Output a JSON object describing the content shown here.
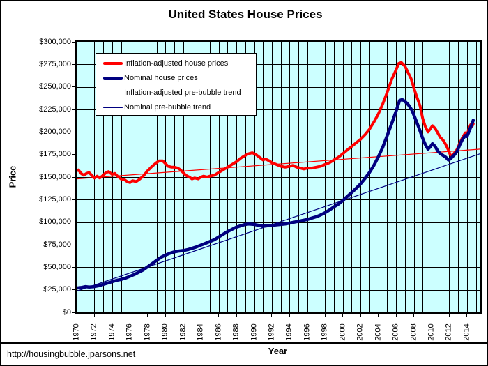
{
  "page": {
    "footer_url": "http://housingbubble.jparsons.net",
    "background": "#FFFFFF",
    "border_color": "#000000"
  },
  "chart_data": {
    "type": "line",
    "title": "United States House Prices",
    "xlabel": "Year",
    "ylabel": "Price",
    "x_domain": [
      1970,
      2015.5
    ],
    "ylim": [
      0,
      300000
    ],
    "y_unit": "USD",
    "series_value_unit": "USD thousands",
    "plot_bg": "#CCFFFF",
    "grid_color": "#000000",
    "grid": {
      "x_step_years": 1,
      "y_step": 25000,
      "visible": true
    },
    "legend_position": "top-left-inside",
    "y_ticks": [
      {
        "value": 0,
        "label": "$0"
      },
      {
        "value": 25000,
        "label": "$25,000"
      },
      {
        "value": 50000,
        "label": "$50,000"
      },
      {
        "value": 75000,
        "label": "$75,000"
      },
      {
        "value": 100000,
        "label": "$100,000"
      },
      {
        "value": 125000,
        "label": "$125,000"
      },
      {
        "value": 150000,
        "label": "$150,000"
      },
      {
        "value": 175000,
        "label": "$175,000"
      },
      {
        "value": 200000,
        "label": "$200,000"
      },
      {
        "value": 225000,
        "label": "$225,000"
      },
      {
        "value": 250000,
        "label": "$250,000"
      },
      {
        "value": 275000,
        "label": "$275,000"
      },
      {
        "value": 300000,
        "label": "$300,000"
      }
    ],
    "x_ticks": [
      {
        "value": 1970,
        "label": "1970"
      },
      {
        "value": 1972,
        "label": "1972"
      },
      {
        "value": 1974,
        "label": "1974"
      },
      {
        "value": 1976,
        "label": "1976"
      },
      {
        "value": 1978,
        "label": "1978"
      },
      {
        "value": 1980,
        "label": "1980"
      },
      {
        "value": 1982,
        "label": "1982"
      },
      {
        "value": 1984,
        "label": "1984"
      },
      {
        "value": 1986,
        "label": "1986"
      },
      {
        "value": 1988,
        "label": "1988"
      },
      {
        "value": 1990,
        "label": "1990"
      },
      {
        "value": 1992,
        "label": "1992"
      },
      {
        "value": 1994,
        "label": "1994"
      },
      {
        "value": 1996,
        "label": "1996"
      },
      {
        "value": 1998,
        "label": "1998"
      },
      {
        "value": 2000,
        "label": "2000"
      },
      {
        "value": 2002,
        "label": "2002"
      },
      {
        "value": 2004,
        "label": "2004"
      },
      {
        "value": 2006,
        "label": "2006"
      },
      {
        "value": 2008,
        "label": "2008"
      },
      {
        "value": 2010,
        "label": "2010"
      },
      {
        "value": 2012,
        "label": "2012"
      },
      {
        "value": 2014,
        "label": "2014"
      }
    ],
    "legend": [
      {
        "label": "Inflation-adjusted house prices",
        "color": "#FF0000",
        "line_weight": 4
      },
      {
        "label": "Nominal house prices",
        "color": "#000080",
        "line_weight": 5
      },
      {
        "label": "Inflation-adjusted pre-bubble trend",
        "color": "#FF0000",
        "line_weight": 1
      },
      {
        "label": "Nominal pre-bubble trend",
        "color": "#000080",
        "line_weight": 1
      }
    ],
    "series": [
      {
        "name": "Inflation-adjusted pre-bubble trend",
        "color": "#FF0000",
        "stroke_width": 1.2,
        "points": [
          [
            1970,
            148
          ],
          [
            2015.5,
            181
          ]
        ]
      },
      {
        "name": "Nominal pre-bubble trend",
        "color": "#000080",
        "stroke_width": 1.2,
        "points": [
          [
            1970,
            23.5
          ],
          [
            2015.5,
            176
          ]
        ]
      },
      {
        "name": "Inflation-adjusted house prices",
        "color": "#FF0000",
        "stroke_width": 4,
        "points": [
          [
            1970.0,
            157
          ],
          [
            1970.2,
            158
          ],
          [
            1970.5,
            154
          ],
          [
            1970.8,
            152
          ],
          [
            1971.1,
            154
          ],
          [
            1971.4,
            155
          ],
          [
            1971.7,
            152
          ],
          [
            1972.0,
            149
          ],
          [
            1972.3,
            151
          ],
          [
            1972.6,
            149
          ],
          [
            1973.0,
            152
          ],
          [
            1973.3,
            155
          ],
          [
            1973.6,
            156
          ],
          [
            1974.0,
            153
          ],
          [
            1974.3,
            154
          ],
          [
            1974.6,
            151
          ],
          [
            1975.0,
            148
          ],
          [
            1975.4,
            147
          ],
          [
            1975.7,
            145
          ],
          [
            1976.0,
            144
          ],
          [
            1976.3,
            146
          ],
          [
            1976.7,
            145
          ],
          [
            1977.0,
            147
          ],
          [
            1977.5,
            151
          ],
          [
            1978.0,
            157
          ],
          [
            1978.5,
            162
          ],
          [
            1979.0,
            166
          ],
          [
            1979.3,
            168
          ],
          [
            1979.7,
            168
          ],
          [
            1980.0,
            165
          ],
          [
            1980.3,
            162
          ],
          [
            1980.7,
            161
          ],
          [
            1981.0,
            161
          ],
          [
            1981.4,
            160
          ],
          [
            1981.7,
            158
          ],
          [
            1982.0,
            155
          ],
          [
            1982.3,
            152
          ],
          [
            1982.7,
            150
          ],
          [
            1983.0,
            148
          ],
          [
            1983.3,
            149
          ],
          [
            1983.7,
            148
          ],
          [
            1984.0,
            150
          ],
          [
            1984.3,
            151
          ],
          [
            1984.7,
            150
          ],
          [
            1985.0,
            151
          ],
          [
            1985.5,
            152
          ],
          [
            1986.0,
            155
          ],
          [
            1986.5,
            158
          ],
          [
            1987.0,
            161
          ],
          [
            1987.5,
            164
          ],
          [
            1988.0,
            167
          ],
          [
            1988.5,
            171
          ],
          [
            1989.0,
            174
          ],
          [
            1989.4,
            176
          ],
          [
            1989.8,
            177
          ],
          [
            1990.2,
            175
          ],
          [
            1990.6,
            172
          ],
          [
            1991.0,
            169
          ],
          [
            1991.3,
            170
          ],
          [
            1991.7,
            168
          ],
          [
            1992.0,
            166
          ],
          [
            1992.5,
            164
          ],
          [
            1993.0,
            162
          ],
          [
            1993.5,
            161
          ],
          [
            1994.0,
            162
          ],
          [
            1994.4,
            163
          ],
          [
            1994.8,
            161
          ],
          [
            1995.2,
            160
          ],
          [
            1995.6,
            159
          ],
          [
            1996.0,
            160
          ],
          [
            1996.5,
            160
          ],
          [
            1997.0,
            161
          ],
          [
            1997.5,
            162
          ],
          [
            1998.0,
            164
          ],
          [
            1998.5,
            166
          ],
          [
            1999.0,
            169
          ],
          [
            1999.5,
            172
          ],
          [
            2000.0,
            176
          ],
          [
            2000.5,
            180
          ],
          [
            2001.0,
            184
          ],
          [
            2001.5,
            188
          ],
          [
            2002.0,
            192
          ],
          [
            2002.5,
            197
          ],
          [
            2003.0,
            203
          ],
          [
            2003.5,
            211
          ],
          [
            2004.0,
            220
          ],
          [
            2004.5,
            231
          ],
          [
            2005.0,
            244
          ],
          [
            2005.5,
            258
          ],
          [
            2006.0,
            269
          ],
          [
            2006.3,
            276
          ],
          [
            2006.6,
            277
          ],
          [
            2007.0,
            273
          ],
          [
            2007.3,
            267
          ],
          [
            2007.7,
            259
          ],
          [
            2008.0,
            249
          ],
          [
            2008.3,
            240
          ],
          [
            2008.7,
            229
          ],
          [
            2009.0,
            215
          ],
          [
            2009.3,
            206
          ],
          [
            2009.6,
            200
          ],
          [
            2009.9,
            204
          ],
          [
            2010.1,
            207
          ],
          [
            2010.4,
            204
          ],
          [
            2010.7,
            199
          ],
          [
            2011.0,
            194
          ],
          [
            2011.3,
            191
          ],
          [
            2011.6,
            186
          ],
          [
            2011.9,
            180
          ],
          [
            2012.1,
            175
          ],
          [
            2012.3,
            173
          ],
          [
            2012.6,
            177
          ],
          [
            2012.9,
            181
          ],
          [
            2013.2,
            188
          ],
          [
            2013.5,
            194
          ],
          [
            2013.8,
            199
          ],
          [
            2014.0,
            197
          ],
          [
            2014.2,
            203
          ],
          [
            2014.4,
            208
          ],
          [
            2014.55,
            206
          ],
          [
            2014.7,
            209
          ]
        ]
      },
      {
        "name": "Nominal house prices",
        "color": "#000080",
        "stroke_width": 4.5,
        "points": [
          [
            1970.0,
            27
          ],
          [
            1970.5,
            27.5
          ],
          [
            1971.0,
            28.5
          ],
          [
            1971.4,
            28
          ],
          [
            1972.0,
            28.5
          ],
          [
            1972.5,
            29.5
          ],
          [
            1973.0,
            31
          ],
          [
            1973.5,
            32.5
          ],
          [
            1974.0,
            34
          ],
          [
            1974.5,
            35.5
          ],
          [
            1975.0,
            36.5
          ],
          [
            1975.5,
            38
          ],
          [
            1976.0,
            40
          ],
          [
            1976.5,
            42
          ],
          [
            1977.0,
            44.5
          ],
          [
            1977.5,
            47
          ],
          [
            1978.0,
            50.5
          ],
          [
            1978.5,
            54
          ],
          [
            1979.0,
            57.5
          ],
          [
            1979.5,
            61
          ],
          [
            1980.0,
            63.5
          ],
          [
            1980.5,
            65.5
          ],
          [
            1981.0,
            67
          ],
          [
            1981.5,
            68
          ],
          [
            1982.0,
            68.5
          ],
          [
            1982.5,
            69.5
          ],
          [
            1983.0,
            71
          ],
          [
            1983.5,
            72.5
          ],
          [
            1984.0,
            74.5
          ],
          [
            1984.5,
            76.5
          ],
          [
            1985.0,
            78.5
          ],
          [
            1985.5,
            80.5
          ],
          [
            1986.0,
            83.5
          ],
          [
            1986.5,
            86.5
          ],
          [
            1987.0,
            89.5
          ],
          [
            1987.5,
            92
          ],
          [
            1988.0,
            94.5
          ],
          [
            1988.5,
            96
          ],
          [
            1989.0,
            97.5
          ],
          [
            1989.4,
            98
          ],
          [
            1990.0,
            97.5
          ],
          [
            1990.5,
            96.5
          ],
          [
            1991.0,
            95.5
          ],
          [
            1991.5,
            96
          ],
          [
            1992.0,
            96.5
          ],
          [
            1992.5,
            97
          ],
          [
            1993.0,
            97.5
          ],
          [
            1993.5,
            98
          ],
          [
            1994.0,
            99
          ],
          [
            1994.5,
            100
          ],
          [
            1995.0,
            101
          ],
          [
            1995.5,
            102
          ],
          [
            1996.0,
            103
          ],
          [
            1996.5,
            104.5
          ],
          [
            1997.0,
            106
          ],
          [
            1997.5,
            108
          ],
          [
            1998.0,
            110.5
          ],
          [
            1998.5,
            113.5
          ],
          [
            1999.0,
            117
          ],
          [
            1999.5,
            120
          ],
          [
            2000.0,
            124
          ],
          [
            2000.5,
            128.5
          ],
          [
            2001.0,
            133
          ],
          [
            2001.5,
            137.5
          ],
          [
            2002.0,
            142.5
          ],
          [
            2002.5,
            148.5
          ],
          [
            2003.0,
            155
          ],
          [
            2003.5,
            163
          ],
          [
            2004.0,
            172.5
          ],
          [
            2004.5,
            183
          ],
          [
            2005.0,
            196
          ],
          [
            2005.5,
            209
          ],
          [
            2006.0,
            223
          ],
          [
            2006.4,
            235
          ],
          [
            2006.7,
            236
          ],
          [
            2007.0,
            234
          ],
          [
            2007.4,
            230
          ],
          [
            2007.8,
            224
          ],
          [
            2008.2,
            214
          ],
          [
            2008.6,
            204
          ],
          [
            2009.0,
            193
          ],
          [
            2009.3,
            186
          ],
          [
            2009.6,
            181
          ],
          [
            2009.9,
            184
          ],
          [
            2010.1,
            187
          ],
          [
            2010.4,
            184
          ],
          [
            2010.7,
            179
          ],
          [
            2011.0,
            176
          ],
          [
            2011.3,
            174
          ],
          [
            2011.6,
            172
          ],
          [
            2011.9,
            169
          ],
          [
            2012.1,
            170
          ],
          [
            2012.3,
            172
          ],
          [
            2012.6,
            175
          ],
          [
            2012.9,
            179
          ],
          [
            2013.2,
            186
          ],
          [
            2013.5,
            192
          ],
          [
            2013.8,
            196
          ],
          [
            2014.0,
            195
          ],
          [
            2014.2,
            200
          ],
          [
            2014.4,
            205
          ],
          [
            2014.6,
            210
          ],
          [
            2014.7,
            213
          ]
        ]
      }
    ]
  }
}
